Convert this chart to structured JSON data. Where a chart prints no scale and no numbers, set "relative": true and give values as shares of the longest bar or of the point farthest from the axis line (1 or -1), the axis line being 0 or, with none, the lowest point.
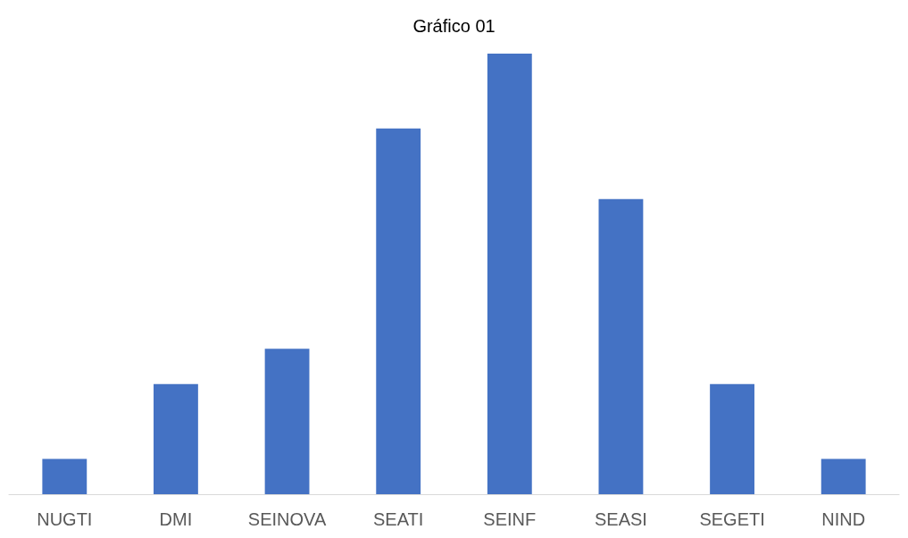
{
  "chart_data": {
    "type": "bar",
    "title": "Gráfico 01",
    "relative": true,
    "categories": [
      "NUGTI",
      "DMI",
      "SEINOVA",
      "SEATI",
      "SEINF",
      "SEASI",
      "SEGETI",
      "NIND"
    ],
    "values": [
      0.08,
      0.25,
      0.33,
      0.83,
      1,
      0.67,
      0.25,
      0.08
    ],
    "color": "#4472c4"
  }
}
